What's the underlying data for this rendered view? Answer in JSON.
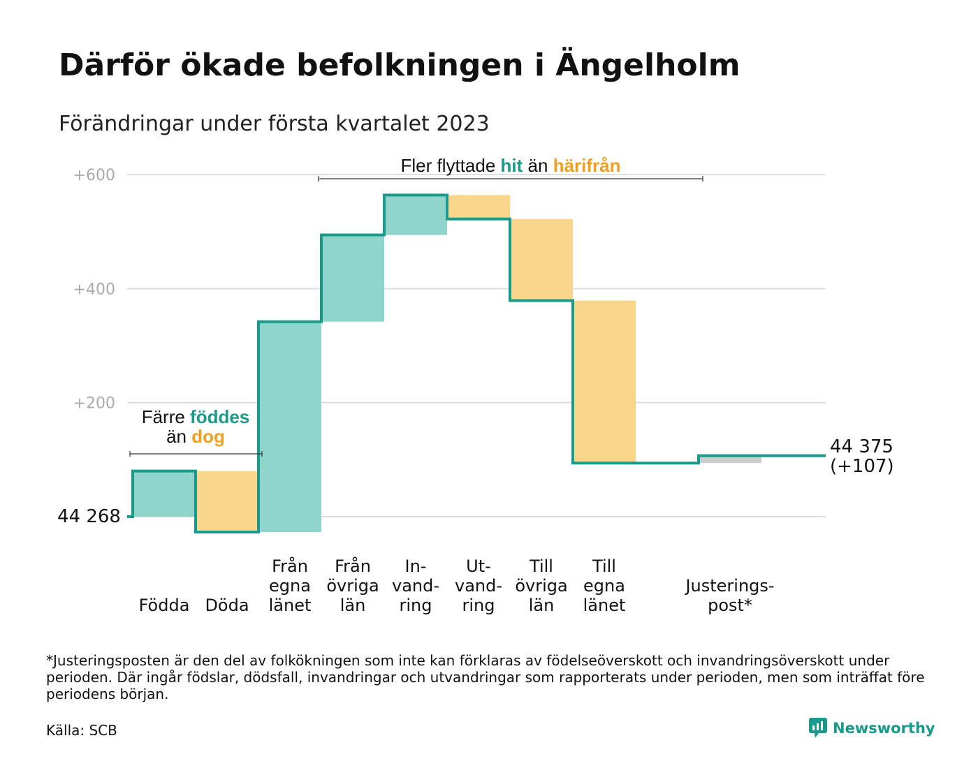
{
  "title": "Därför ökade befolkningen i Ängelholm",
  "subtitle": "Förändringar under första kvartalet 2023",
  "chart_data": {
    "type": "waterfall",
    "start_label": "44 268",
    "start": 0,
    "end_label": "44 375",
    "end_change_label": "(+107)",
    "ylim": [
      -40,
      640
    ],
    "y_ticks": [
      {
        "value": 200,
        "label": "+200"
      },
      {
        "value": 400,
        "label": "+400"
      },
      {
        "value": 600,
        "label": "+600"
      }
    ],
    "grid": true,
    "steps": [
      {
        "category": "Födda",
        "value": 80,
        "kind": "in",
        "color": "#8fd5cb"
      },
      {
        "category": "Döda",
        "value": -107,
        "kind": "out",
        "color": "#fad68b"
      },
      {
        "category": "Från\negna\nlänet",
        "value": 369,
        "kind": "in",
        "color": "#8fd5cb"
      },
      {
        "category": "Från\növriga\nlän",
        "value": 152,
        "kind": "in",
        "color": "#8fd5cb"
      },
      {
        "category": "In-\nvand-\nring",
        "value": 70,
        "kind": "in",
        "color": "#8fd5cb"
      },
      {
        "category": "Ut-\nvand-\nring",
        "value": -42,
        "kind": "out",
        "color": "#fad68b"
      },
      {
        "category": "Till\növriga\nlän",
        "value": -143,
        "kind": "out",
        "color": "#fad68b"
      },
      {
        "category": "Till\negna\nlänet",
        "value": -285,
        "kind": "out",
        "color": "#fad68b"
      },
      {
        "category": "",
        "value": 0,
        "kind": "gap",
        "color": "none"
      },
      {
        "category": "Justerings-\npost*",
        "value": 13,
        "kind": "adjust",
        "color": "#cccccc"
      }
    ],
    "annotations": [
      {
        "lines": [
          [
            "Färre ",
            ""
          ],
          [
            "föddes",
            "teal"
          ],
          [
            "än ",
            ""
          ],
          [
            "dog",
            "orange"
          ]
        ]
      },
      {
        "lines": [
          [
            "Fler flyttade ",
            ""
          ],
          [
            "hit",
            "teal"
          ],
          [
            " än ",
            ""
          ],
          [
            "härifrån",
            "orange"
          ]
        ]
      }
    ],
    "colors": {
      "line": "#1a9a8a",
      "in": "#8fd5cb",
      "out": "#fad68b",
      "adjust": "#cccccc",
      "grid": "#dddddd"
    }
  },
  "annotation_births": {
    "pre": "Färre ",
    "teal": "föddes",
    "mid": "än ",
    "orange": "dog"
  },
  "annotation_moves": {
    "pre": "Fler flyttade ",
    "teal": "hit",
    "mid": " än ",
    "orange": "härifrån"
  },
  "footnote": "*Justeringsposten är den del av folkökningen som inte kan förklaras av födelseöverskott och invandringsöverskott under perioden. Där ingår födslar, dödsfall, invandringar och utvandringar som rapporterats under perioden, men som inträffat före periodens början.",
  "source": "Källa: SCB",
  "logo": {
    "text": "Newsworthy",
    "icon": "newsworthy-chart-bubble-icon"
  }
}
